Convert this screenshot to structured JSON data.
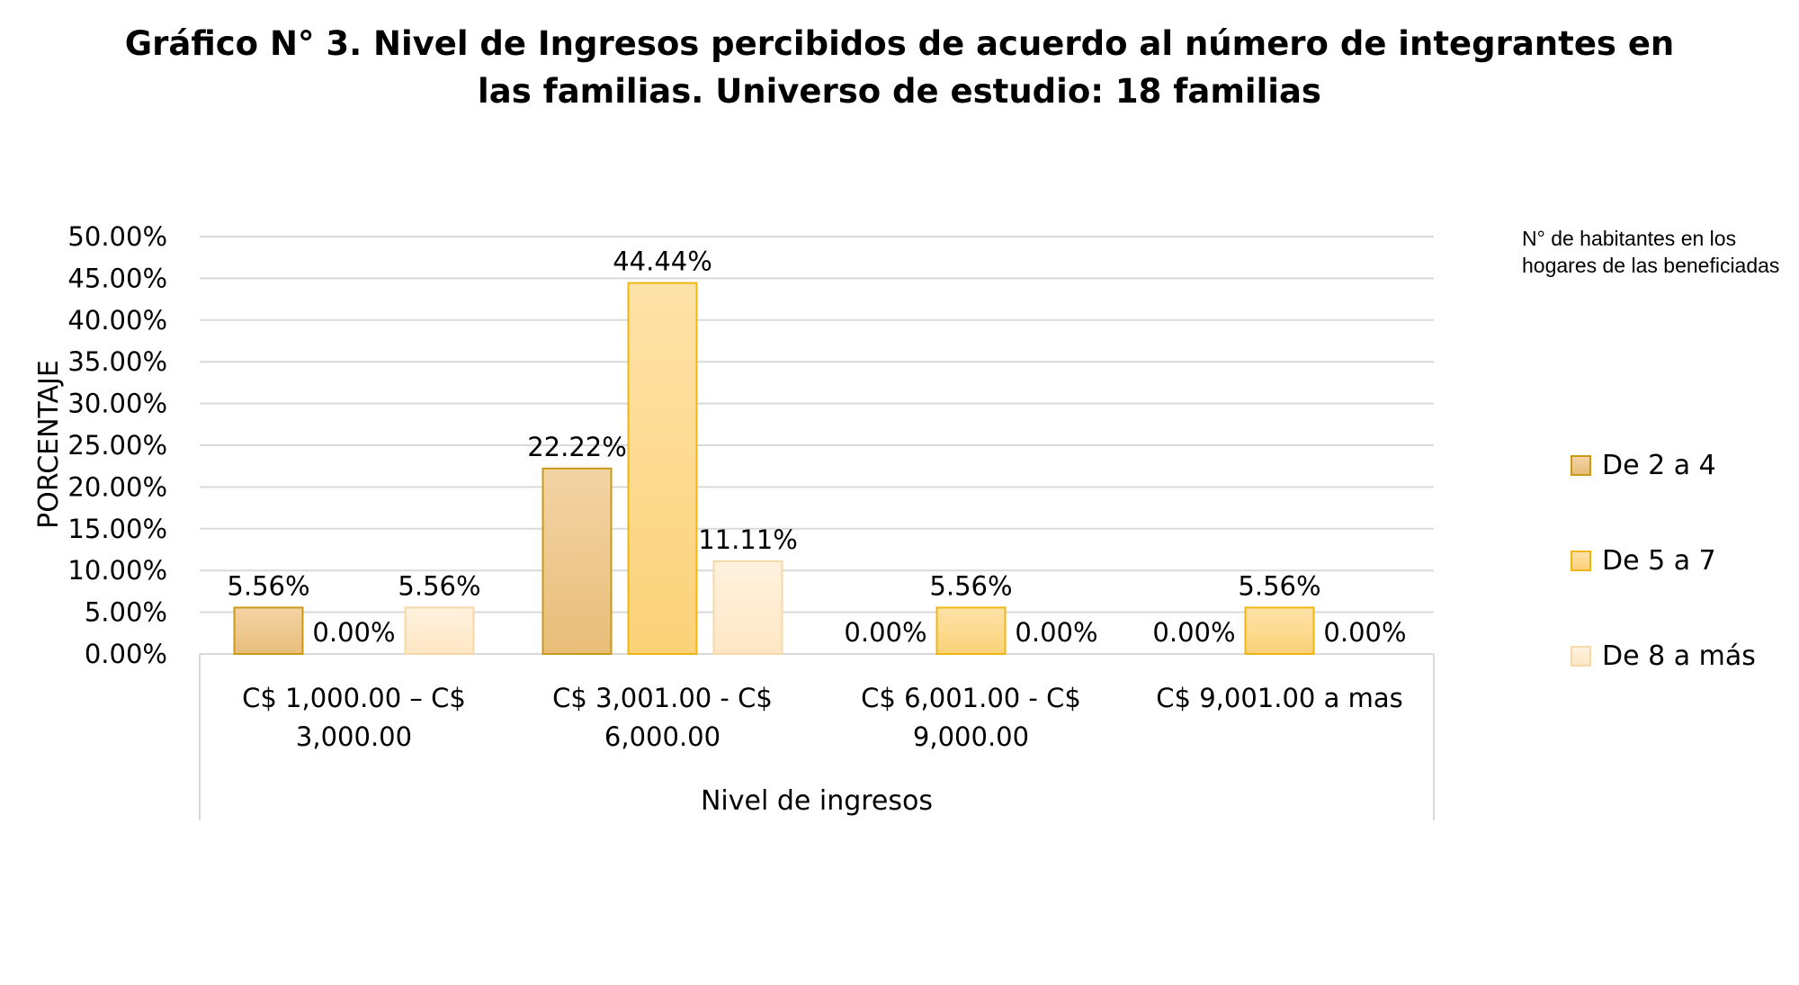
{
  "chart_data": {
    "type": "bar",
    "title": "Gráfico N° 3. Nivel de Ingresos percibidos de acuerdo al número de integrantes en las familias. Universo de estudio: 18 familias",
    "title_lines": [
      "Gráfico N° 3. Nivel de Ingresos percibidos de acuerdo al número de integrantes en",
      "las familias. Universo de estudio: 18 familias"
    ],
    "xlabel": "Nivel de ingresos",
    "ylabel": "PORCENTAJE",
    "ylim": [
      0,
      50
    ],
    "yticks": [
      "0.00%",
      "5.00%",
      "10.00%",
      "15.00%",
      "20.00%",
      "25.00%",
      "30.00%",
      "35.00%",
      "40.00%",
      "45.00%",
      "50.00%"
    ],
    "grid": true,
    "legend_position": "right",
    "legend_title": "N° de habitantes en los hogares de las beneficiadas",
    "categories": [
      [
        "C$ 1,000.00 – C$",
        "3,000.00"
      ],
      [
        "C$ 3,001.00 - C$",
        "6,000.00"
      ],
      [
        "C$ 6,001.00 - C$",
        "9,000.00"
      ],
      [
        "C$ 9,001.00 a mas"
      ]
    ],
    "series": [
      {
        "name": "De 2 a 4",
        "values": [
          5.56,
          22.22,
          0.0,
          0.0
        ],
        "labels": [
          "5.56%",
          "22.22%",
          "0.00%",
          "0.00%"
        ],
        "color_top": "#f3d4a5",
        "color_bottom": "#e8bd78",
        "border": "#c99a1a"
      },
      {
        "name": "De 5 a 7",
        "values": [
          0.0,
          44.44,
          5.56,
          5.56
        ],
        "labels": [
          "0.00%",
          "44.44%",
          "5.56%",
          "5.56%"
        ],
        "color_top": "#fde2a8",
        "color_bottom": "#fcd278",
        "border": "#efb515"
      },
      {
        "name": "De 8 a más",
        "values": [
          5.56,
          11.11,
          0.0,
          0.0
        ],
        "labels": [
          "5.56%",
          "11.11%",
          "0.00%",
          "0.00%"
        ],
        "color_top": "#fff2de",
        "color_bottom": "#fde6c4",
        "border": "#f5d9a8"
      }
    ]
  }
}
